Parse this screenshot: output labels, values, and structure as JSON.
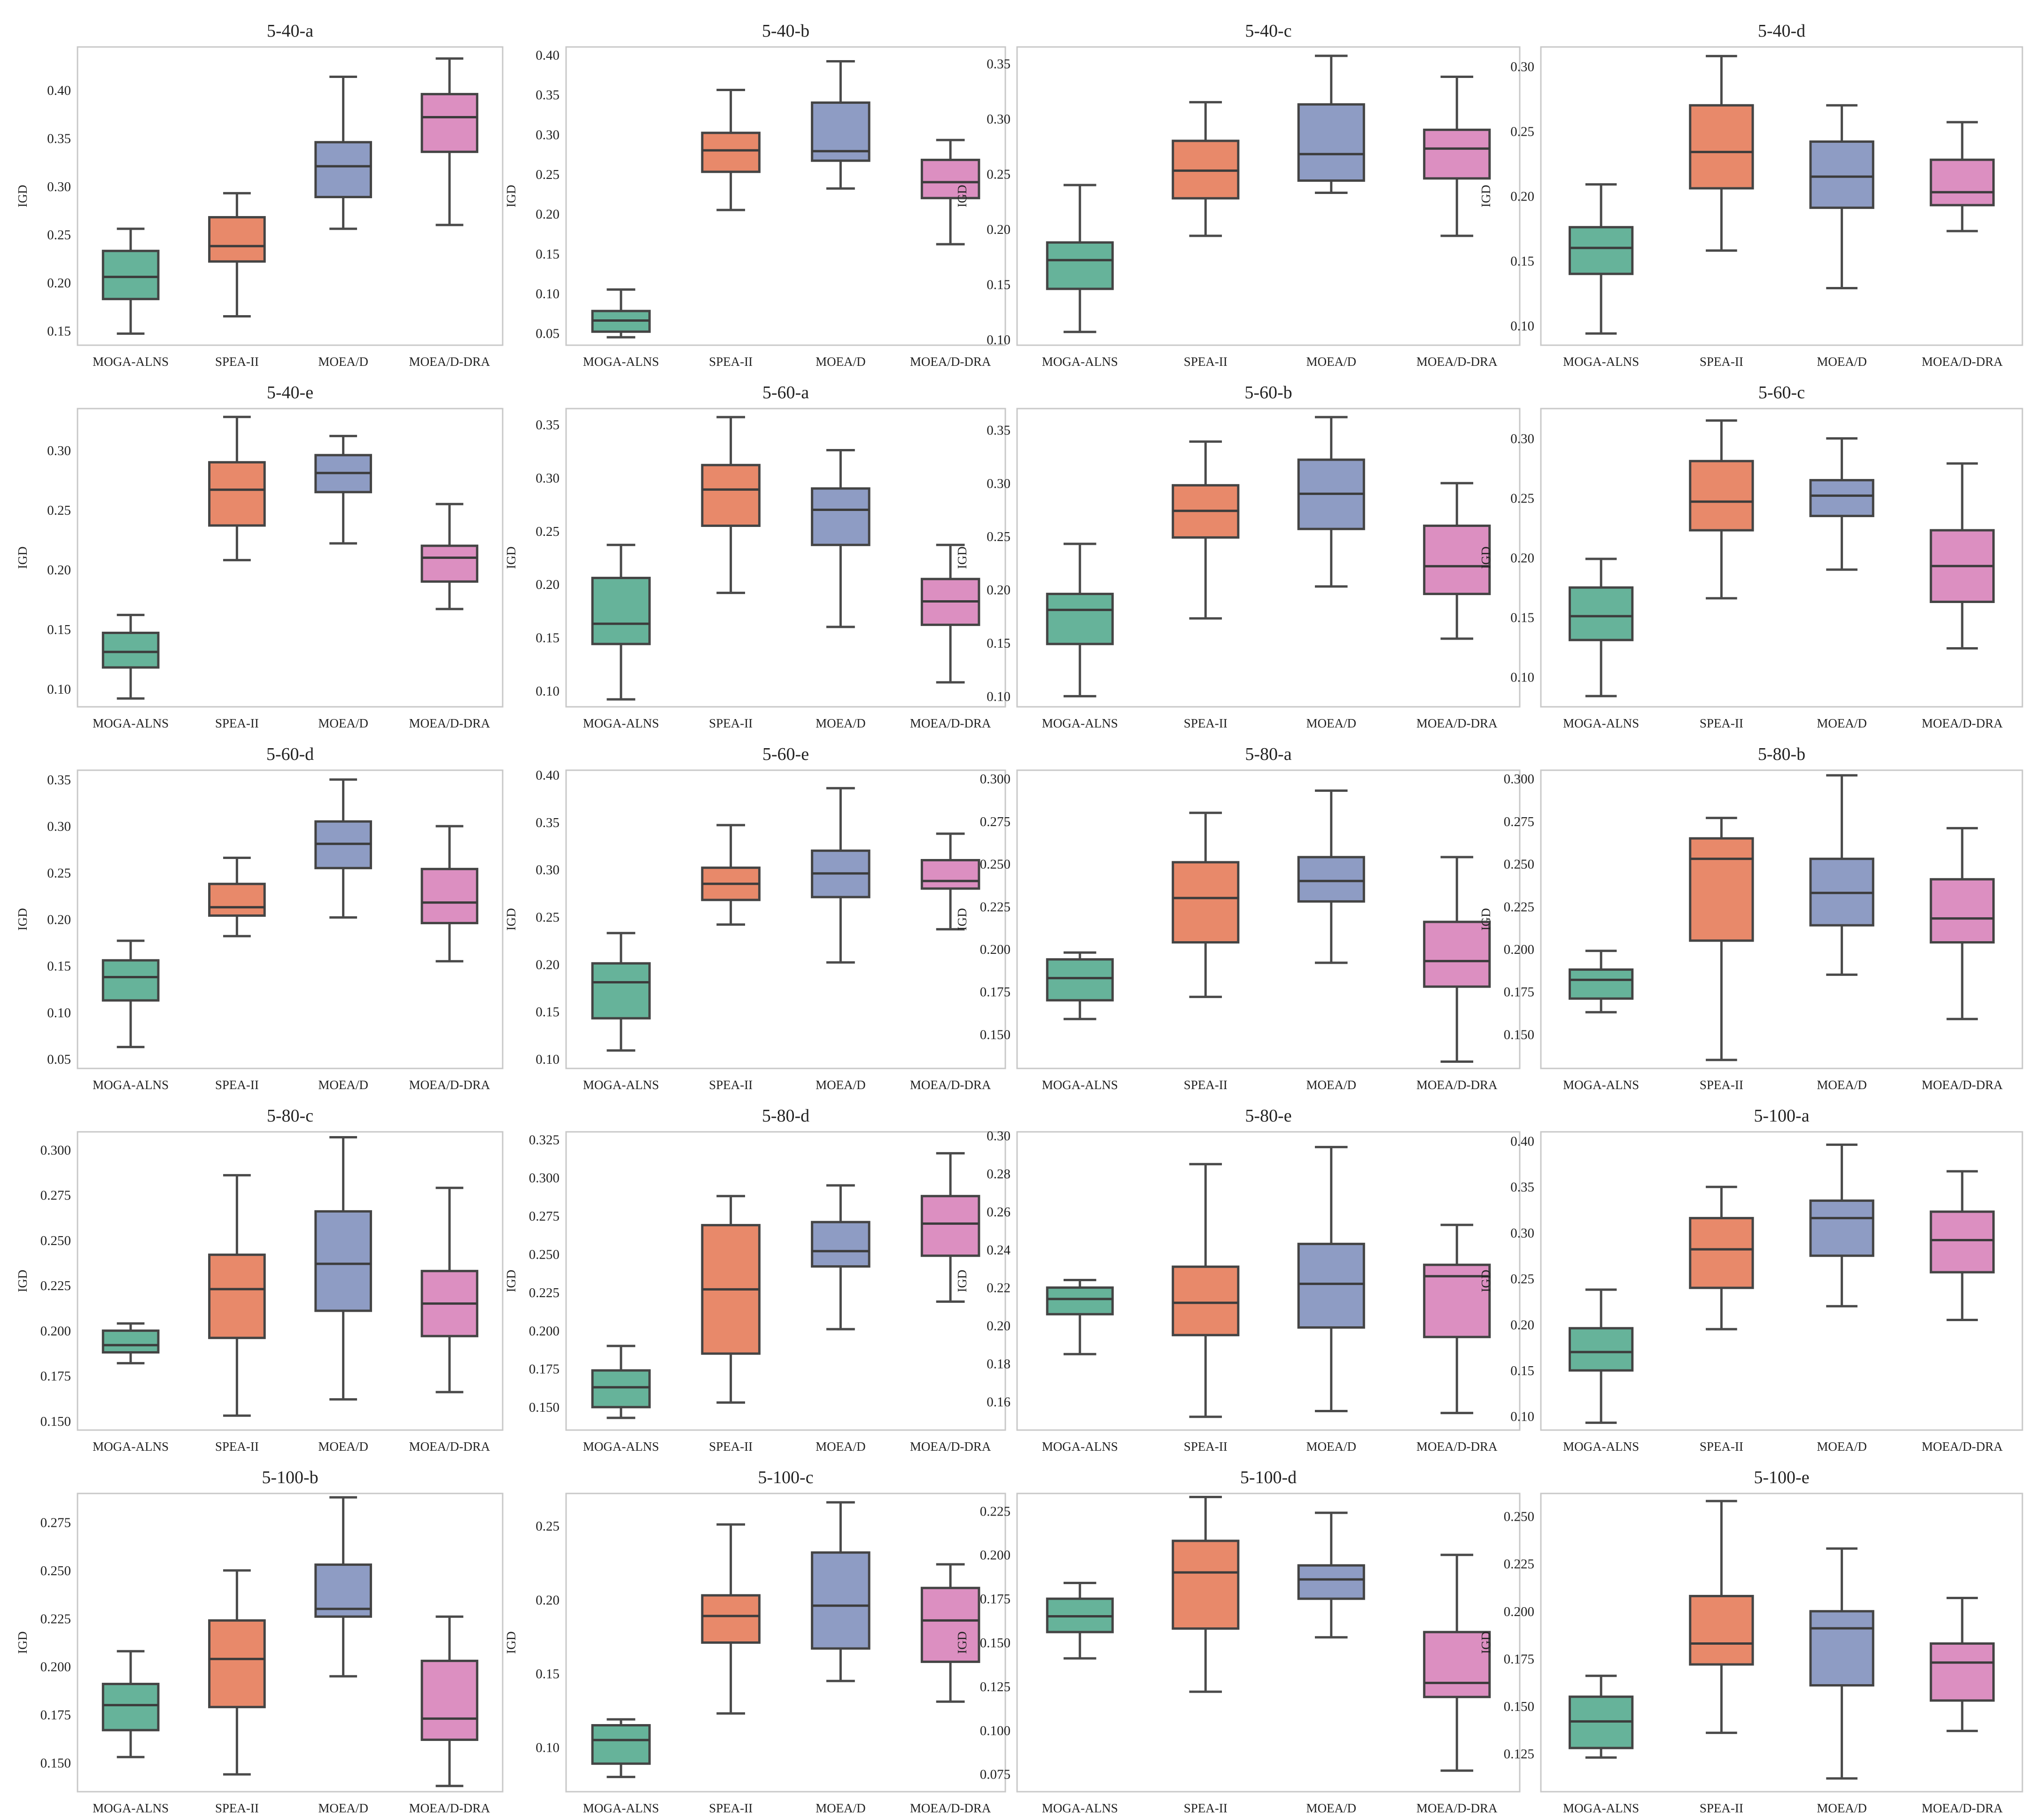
{
  "colors": {
    "MOGA-ALNS": "#66b39a",
    "SPEA-II": "#e8896a",
    "MOEA/D": "#8e9cc4",
    "MOEA/D-DRA": "#dc8fc1"
  },
  "chart_data": [
    {
      "type": "box",
      "title": "5-40-a",
      "ylabel": "IGD",
      "categories": [
        "MOGA-ALNS",
        "SPEA-II",
        "MOEA/D",
        "MOEA/D-DRA"
      ],
      "ylim": [
        0.135,
        0.445
      ],
      "yticks": [
        "0.15",
        "0.20",
        "0.25",
        "0.30",
        "0.35",
        "0.40"
      ],
      "boxes": [
        {
          "min": 0.147,
          "q1": 0.183,
          "median": 0.206,
          "q3": 0.233,
          "max": 0.256
        },
        {
          "min": 0.165,
          "q1": 0.222,
          "median": 0.238,
          "q3": 0.268,
          "max": 0.293
        },
        {
          "min": 0.256,
          "q1": 0.289,
          "median": 0.321,
          "q3": 0.346,
          "max": 0.414
        },
        {
          "min": 0.26,
          "q1": 0.336,
          "median": 0.372,
          "q3": 0.396,
          "max": 0.433
        }
      ]
    },
    {
      "type": "box",
      "title": "5-40-b",
      "ylabel": "IGD",
      "categories": [
        "MOGA-ALNS",
        "SPEA-II",
        "MOEA/D",
        "MOEA/D-DRA"
      ],
      "ylim": [
        0.035,
        0.41
      ],
      "yticks": [
        "0.05",
        "0.10",
        "0.15",
        "0.20",
        "0.25",
        "0.30",
        "0.35",
        "0.40"
      ],
      "boxes": [
        {
          "min": 0.045,
          "q1": 0.052,
          "median": 0.066,
          "q3": 0.078,
          "max": 0.105
        },
        {
          "min": 0.205,
          "q1": 0.253,
          "median": 0.28,
          "q3": 0.302,
          "max": 0.356
        },
        {
          "min": 0.232,
          "q1": 0.267,
          "median": 0.279,
          "q3": 0.34,
          "max": 0.392
        },
        {
          "min": 0.162,
          "q1": 0.22,
          "median": 0.24,
          "q3": 0.268,
          "max": 0.293
        }
      ]
    },
    {
      "type": "box",
      "title": "5-40-c",
      "ylabel": "IGD",
      "categories": [
        "MOGA-ALNS",
        "SPEA-II",
        "MOEA/D",
        "MOEA/D-DRA"
      ],
      "ylim": [
        0.095,
        0.365
      ],
      "yticks": [
        "0.10",
        "0.15",
        "0.20",
        "0.25",
        "0.30",
        "0.35"
      ],
      "boxes": [
        {
          "min": 0.107,
          "q1": 0.146,
          "median": 0.172,
          "q3": 0.188,
          "max": 0.24
        },
        {
          "min": 0.194,
          "q1": 0.228,
          "median": 0.253,
          "q3": 0.28,
          "max": 0.315
        },
        {
          "min": 0.233,
          "q1": 0.244,
          "median": 0.268,
          "q3": 0.313,
          "max": 0.357
        },
        {
          "min": 0.194,
          "q1": 0.246,
          "median": 0.273,
          "q3": 0.29,
          "max": 0.338
        }
      ]
    },
    {
      "type": "box",
      "title": "5-40-d",
      "ylabel": "IGD",
      "categories": [
        "MOGA-ALNS",
        "SPEA-II",
        "MOEA/D",
        "MOEA/D-DRA"
      ],
      "ylim": [
        0.085,
        0.315
      ],
      "yticks": [
        "0.10",
        "0.15",
        "0.20",
        "0.25",
        "0.30"
      ],
      "boxes": [
        {
          "min": 0.094,
          "q1": 0.14,
          "median": 0.16,
          "q3": 0.176,
          "max": 0.209
        },
        {
          "min": 0.158,
          "q1": 0.206,
          "median": 0.234,
          "q3": 0.27,
          "max": 0.308
        },
        {
          "min": 0.129,
          "q1": 0.191,
          "median": 0.215,
          "q3": 0.242,
          "max": 0.27
        },
        {
          "min": 0.173,
          "q1": 0.193,
          "median": 0.203,
          "q3": 0.228,
          "max": 0.257
        }
      ]
    },
    {
      "type": "box",
      "title": "5-40-e",
      "ylabel": "IGD",
      "categories": [
        "MOGA-ALNS",
        "SPEA-II",
        "MOEA/D",
        "MOEA/D-DRA"
      ],
      "ylim": [
        0.085,
        0.335
      ],
      "yticks": [
        "0.10",
        "0.15",
        "0.20",
        "0.25",
        "0.30"
      ],
      "boxes": [
        {
          "min": 0.092,
          "q1": 0.118,
          "median": 0.131,
          "q3": 0.147,
          "max": 0.162
        },
        {
          "min": 0.208,
          "q1": 0.237,
          "median": 0.267,
          "q3": 0.29,
          "max": 0.328
        },
        {
          "min": 0.222,
          "q1": 0.265,
          "median": 0.281,
          "q3": 0.296,
          "max": 0.312
        },
        {
          "min": 0.167,
          "q1": 0.19,
          "median": 0.21,
          "q3": 0.22,
          "max": 0.255
        }
      ]
    },
    {
      "type": "box",
      "title": "5-60-a",
      "ylabel": "IGD",
      "categories": [
        "MOGA-ALNS",
        "SPEA-II",
        "MOEA/D",
        "MOEA/D-DRA"
      ],
      "ylim": [
        0.085,
        0.365
      ],
      "yticks": [
        "0.10",
        "0.15",
        "0.20",
        "0.25",
        "0.30",
        "0.35"
      ],
      "boxes": [
        {
          "min": 0.092,
          "q1": 0.144,
          "median": 0.163,
          "q3": 0.206,
          "max": 0.237
        },
        {
          "min": 0.192,
          "q1": 0.255,
          "median": 0.289,
          "q3": 0.312,
          "max": 0.357
        },
        {
          "min": 0.16,
          "q1": 0.237,
          "median": 0.27,
          "q3": 0.29,
          "max": 0.326
        },
        {
          "min": 0.108,
          "q1": 0.162,
          "median": 0.184,
          "q3": 0.205,
          "max": 0.237
        }
      ]
    },
    {
      "type": "box",
      "title": "5-60-b",
      "ylabel": "IGD",
      "categories": [
        "MOGA-ALNS",
        "SPEA-II",
        "MOEA/D",
        "MOEA/D-DRA"
      ],
      "ylim": [
        0.09,
        0.37
      ],
      "yticks": [
        "0.10",
        "0.15",
        "0.20",
        "0.25",
        "0.30",
        "0.35"
      ],
      "boxes": [
        {
          "min": 0.1,
          "q1": 0.149,
          "median": 0.181,
          "q3": 0.196,
          "max": 0.243
        },
        {
          "min": 0.173,
          "q1": 0.249,
          "median": 0.274,
          "q3": 0.298,
          "max": 0.339
        },
        {
          "min": 0.203,
          "q1": 0.257,
          "median": 0.29,
          "q3": 0.322,
          "max": 0.362
        },
        {
          "min": 0.154,
          "q1": 0.196,
          "median": 0.222,
          "q3": 0.26,
          "max": 0.3
        }
      ]
    },
    {
      "type": "box",
      "title": "5-60-c",
      "ylabel": "IGD",
      "categories": [
        "MOGA-ALNS",
        "SPEA-II",
        "MOEA/D",
        "MOEA/D-DRA"
      ],
      "ylim": [
        0.075,
        0.325
      ],
      "yticks": [
        "0.10",
        "0.15",
        "0.20",
        "0.25",
        "0.30"
      ],
      "boxes": [
        {
          "min": 0.084,
          "q1": 0.131,
          "median": 0.151,
          "q3": 0.175,
          "max": 0.199
        },
        {
          "min": 0.166,
          "q1": 0.223,
          "median": 0.247,
          "q3": 0.281,
          "max": 0.315
        },
        {
          "min": 0.19,
          "q1": 0.235,
          "median": 0.252,
          "q3": 0.265,
          "max": 0.3
        },
        {
          "min": 0.124,
          "q1": 0.163,
          "median": 0.193,
          "q3": 0.223,
          "max": 0.279
        }
      ]
    },
    {
      "type": "box",
      "title": "5-60-d",
      "ylabel": "IGD",
      "categories": [
        "MOGA-ALNS",
        "SPEA-II",
        "MOEA/D",
        "MOEA/D-DRA"
      ],
      "ylim": [
        0.04,
        0.36
      ],
      "yticks": [
        "0.05",
        "0.10",
        "0.15",
        "0.20",
        "0.25",
        "0.30",
        "0.35"
      ],
      "boxes": [
        {
          "min": 0.063,
          "q1": 0.113,
          "median": 0.138,
          "q3": 0.156,
          "max": 0.177
        },
        {
          "min": 0.182,
          "q1": 0.204,
          "median": 0.213,
          "q3": 0.238,
          "max": 0.266
        },
        {
          "min": 0.202,
          "q1": 0.255,
          "median": 0.281,
          "q3": 0.305,
          "max": 0.35
        },
        {
          "min": 0.155,
          "q1": 0.196,
          "median": 0.218,
          "q3": 0.254,
          "max": 0.3
        }
      ]
    },
    {
      "type": "box",
      "title": "5-60-e",
      "ylabel": "IGD",
      "categories": [
        "MOGA-ALNS",
        "SPEA-II",
        "MOEA/D",
        "MOEA/D-DRA"
      ],
      "ylim": [
        0.09,
        0.405
      ],
      "yticks": [
        "0.10",
        "0.15",
        "0.20",
        "0.25",
        "0.30",
        "0.35",
        "0.40"
      ],
      "boxes": [
        {
          "min": 0.109,
          "q1": 0.143,
          "median": 0.181,
          "q3": 0.201,
          "max": 0.233
        },
        {
          "min": 0.242,
          "q1": 0.268,
          "median": 0.285,
          "q3": 0.302,
          "max": 0.347
        },
        {
          "min": 0.202,
          "q1": 0.271,
          "median": 0.296,
          "q3": 0.32,
          "max": 0.386
        },
        {
          "min": 0.237,
          "q1": 0.28,
          "median": 0.288,
          "q3": 0.31,
          "max": 0.338
        }
      ]
    },
    {
      "type": "box",
      "title": "5-80-a",
      "ylabel": "IGD",
      "categories": [
        "MOGA-ALNS",
        "SPEA-II",
        "MOEA/D",
        "MOEA/D-DRA"
      ],
      "ylim": [
        0.13,
        0.305
      ],
      "yticks": [
        "0.150",
        "0.175",
        "0.200",
        "0.225",
        "0.250",
        "0.275",
        "0.300"
      ],
      "boxes": [
        {
          "min": 0.159,
          "q1": 0.17,
          "median": 0.183,
          "q3": 0.194,
          "max": 0.198
        },
        {
          "min": 0.172,
          "q1": 0.204,
          "median": 0.23,
          "q3": 0.251,
          "max": 0.28
        },
        {
          "min": 0.192,
          "q1": 0.228,
          "median": 0.24,
          "q3": 0.254,
          "max": 0.293
        },
        {
          "min": 0.134,
          "q1": 0.178,
          "median": 0.193,
          "q3": 0.216,
          "max": 0.254
        }
      ]
    },
    {
      "type": "box",
      "title": "5-80-b",
      "ylabel": "IGD",
      "categories": [
        "MOGA-ALNS",
        "SPEA-II",
        "MOEA/D",
        "MOEA/D-DRA"
      ],
      "ylim": [
        0.13,
        0.305
      ],
      "yticks": [
        "0.150",
        "0.175",
        "0.200",
        "0.225",
        "0.250",
        "0.275",
        "0.300"
      ],
      "boxes": [
        {
          "min": 0.163,
          "q1": 0.171,
          "median": 0.182,
          "q3": 0.188,
          "max": 0.199
        },
        {
          "min": 0.135,
          "q1": 0.205,
          "median": 0.253,
          "q3": 0.265,
          "max": 0.277
        },
        {
          "min": 0.185,
          "q1": 0.214,
          "median": 0.233,
          "q3": 0.253,
          "max": 0.302
        },
        {
          "min": 0.159,
          "q1": 0.204,
          "median": 0.218,
          "q3": 0.241,
          "max": 0.271
        }
      ]
    },
    {
      "type": "box",
      "title": "5-80-c",
      "ylabel": "IGD",
      "categories": [
        "MOGA-ALNS",
        "SPEA-II",
        "MOEA/D",
        "MOEA/D-DRA"
      ],
      "ylim": [
        0.145,
        0.31
      ],
      "yticks": [
        "0.150",
        "0.175",
        "0.200",
        "0.225",
        "0.250",
        "0.275",
        "0.300"
      ],
      "boxes": [
        {
          "min": 0.182,
          "q1": 0.188,
          "median": 0.192,
          "q3": 0.2,
          "max": 0.204
        },
        {
          "min": 0.153,
          "q1": 0.196,
          "median": 0.223,
          "q3": 0.242,
          "max": 0.286
        },
        {
          "min": 0.162,
          "q1": 0.211,
          "median": 0.237,
          "q3": 0.266,
          "max": 0.307
        },
        {
          "min": 0.166,
          "q1": 0.197,
          "median": 0.215,
          "q3": 0.233,
          "max": 0.279
        }
      ]
    },
    {
      "type": "box",
      "title": "5-80-d",
      "ylabel": "IGD",
      "categories": [
        "MOGA-ALNS",
        "SPEA-II",
        "MOEA/D",
        "MOEA/D-DRA"
      ],
      "ylim": [
        0.135,
        0.33
      ],
      "yticks": [
        "0.150",
        "0.175",
        "0.200",
        "0.225",
        "0.250",
        "0.275",
        "0.300",
        "0.325"
      ],
      "boxes": [
        {
          "min": 0.143,
          "q1": 0.15,
          "median": 0.163,
          "q3": 0.174,
          "max": 0.19
        },
        {
          "min": 0.153,
          "q1": 0.185,
          "median": 0.227,
          "q3": 0.269,
          "max": 0.288
        },
        {
          "min": 0.201,
          "q1": 0.242,
          "median": 0.252,
          "q3": 0.271,
          "max": 0.295
        },
        {
          "min": 0.219,
          "q1": 0.249,
          "median": 0.27,
          "q3": 0.288,
          "max": 0.316
        }
      ]
    },
    {
      "type": "box",
      "title": "5-80-e",
      "ylabel": "IGD",
      "categories": [
        "MOGA-ALNS",
        "SPEA-II",
        "MOEA/D",
        "MOEA/D-DRA"
      ],
      "ylim": [
        0.145,
        0.302
      ],
      "yticks": [
        "0.16",
        "0.18",
        "0.20",
        "0.22",
        "0.24",
        "0.26",
        "0.28",
        "0.30"
      ],
      "boxes": [
        {
          "min": 0.185,
          "q1": 0.206,
          "median": 0.214,
          "q3": 0.22,
          "max": 0.224
        },
        {
          "min": 0.152,
          "q1": 0.195,
          "median": 0.212,
          "q3": 0.231,
          "max": 0.285
        },
        {
          "min": 0.155,
          "q1": 0.199,
          "median": 0.222,
          "q3": 0.243,
          "max": 0.294
        },
        {
          "min": 0.154,
          "q1": 0.194,
          "median": 0.226,
          "q3": 0.232,
          "max": 0.253
        }
      ]
    },
    {
      "type": "box",
      "title": "5-100-a",
      "ylabel": "IGD",
      "categories": [
        "MOGA-ALNS",
        "SPEA-II",
        "MOEA/D",
        "MOEA/D-DRA"
      ],
      "ylim": [
        0.085,
        0.41
      ],
      "yticks": [
        "0.10",
        "0.15",
        "0.20",
        "0.25",
        "0.30",
        "0.35",
        "0.40"
      ],
      "boxes": [
        {
          "min": 0.093,
          "q1": 0.15,
          "median": 0.17,
          "q3": 0.196,
          "max": 0.238
        },
        {
          "min": 0.195,
          "q1": 0.24,
          "median": 0.282,
          "q3": 0.316,
          "max": 0.35
        },
        {
          "min": 0.22,
          "q1": 0.275,
          "median": 0.316,
          "q3": 0.335,
          "max": 0.396
        },
        {
          "min": 0.205,
          "q1": 0.257,
          "median": 0.292,
          "q3": 0.323,
          "max": 0.367
        }
      ]
    },
    {
      "type": "box",
      "title": "5-100-b",
      "ylabel": "IGD",
      "categories": [
        "MOGA-ALNS",
        "SPEA-II",
        "MOEA/D",
        "MOEA/D-DRA"
      ],
      "ylim": [
        0.135,
        0.29
      ],
      "yticks": [
        "0.150",
        "0.175",
        "0.200",
        "0.225",
        "0.250",
        "0.275"
      ],
      "boxes": [
        {
          "min": 0.153,
          "q1": 0.167,
          "median": 0.18,
          "q3": 0.191,
          "max": 0.208
        },
        {
          "min": 0.144,
          "q1": 0.179,
          "median": 0.204,
          "q3": 0.224,
          "max": 0.25
        },
        {
          "min": 0.195,
          "q1": 0.226,
          "median": 0.23,
          "q3": 0.253,
          "max": 0.288
        },
        {
          "min": 0.138,
          "q1": 0.162,
          "median": 0.173,
          "q3": 0.203,
          "max": 0.226
        }
      ]
    },
    {
      "type": "box",
      "title": "5-100-c",
      "ylabel": "IGD",
      "categories": [
        "MOGA-ALNS",
        "SPEA-II",
        "MOEA/D",
        "MOEA/D-DRA"
      ],
      "ylim": [
        0.07,
        0.272
      ],
      "yticks": [
        "0.10",
        "0.15",
        "0.20",
        "0.25"
      ],
      "boxes": [
        {
          "min": 0.08,
          "q1": 0.089,
          "median": 0.105,
          "q3": 0.115,
          "max": 0.119
        },
        {
          "min": 0.123,
          "q1": 0.171,
          "median": 0.189,
          "q3": 0.203,
          "max": 0.251
        },
        {
          "min": 0.145,
          "q1": 0.167,
          "median": 0.196,
          "q3": 0.232,
          "max": 0.266
        },
        {
          "min": 0.131,
          "q1": 0.158,
          "median": 0.186,
          "q3": 0.208,
          "max": 0.224
        }
      ]
    },
    {
      "type": "box",
      "title": "5-100-d",
      "ylabel": "IGD",
      "categories": [
        "MOGA-ALNS",
        "SPEA-II",
        "MOEA/D",
        "MOEA/D-DRA"
      ],
      "ylim": [
        0.065,
        0.235
      ],
      "yticks": [
        "0.075",
        "0.100",
        "0.125",
        "0.150",
        "0.175",
        "0.200",
        "0.225"
      ],
      "boxes": [
        {
          "min": 0.141,
          "q1": 0.156,
          "median": 0.165,
          "q3": 0.175,
          "max": 0.184
        },
        {
          "min": 0.122,
          "q1": 0.158,
          "median": 0.19,
          "q3": 0.208,
          "max": 0.233
        },
        {
          "min": 0.153,
          "q1": 0.175,
          "median": 0.186,
          "q3": 0.194,
          "max": 0.224
        },
        {
          "min": 0.077,
          "q1": 0.119,
          "median": 0.127,
          "q3": 0.156,
          "max": 0.2
        }
      ]
    },
    {
      "type": "box",
      "title": "5-100-e",
      "ylabel": "IGD",
      "categories": [
        "MOGA-ALNS",
        "SPEA-II",
        "MOEA/D",
        "MOEA/D-DRA"
      ],
      "ylim": [
        0.105,
        0.262
      ],
      "yticks": [
        "0.125",
        "0.150",
        "0.175",
        "0.200",
        "0.225",
        "0.250"
      ],
      "boxes": [
        {
          "min": 0.123,
          "q1": 0.128,
          "median": 0.142,
          "q3": 0.155,
          "max": 0.166
        },
        {
          "min": 0.136,
          "q1": 0.172,
          "median": 0.183,
          "q3": 0.208,
          "max": 0.258
        },
        {
          "min": 0.112,
          "q1": 0.161,
          "median": 0.191,
          "q3": 0.2,
          "max": 0.233
        },
        {
          "min": 0.137,
          "q1": 0.153,
          "median": 0.173,
          "q3": 0.183,
          "max": 0.207
        }
      ]
    }
  ]
}
